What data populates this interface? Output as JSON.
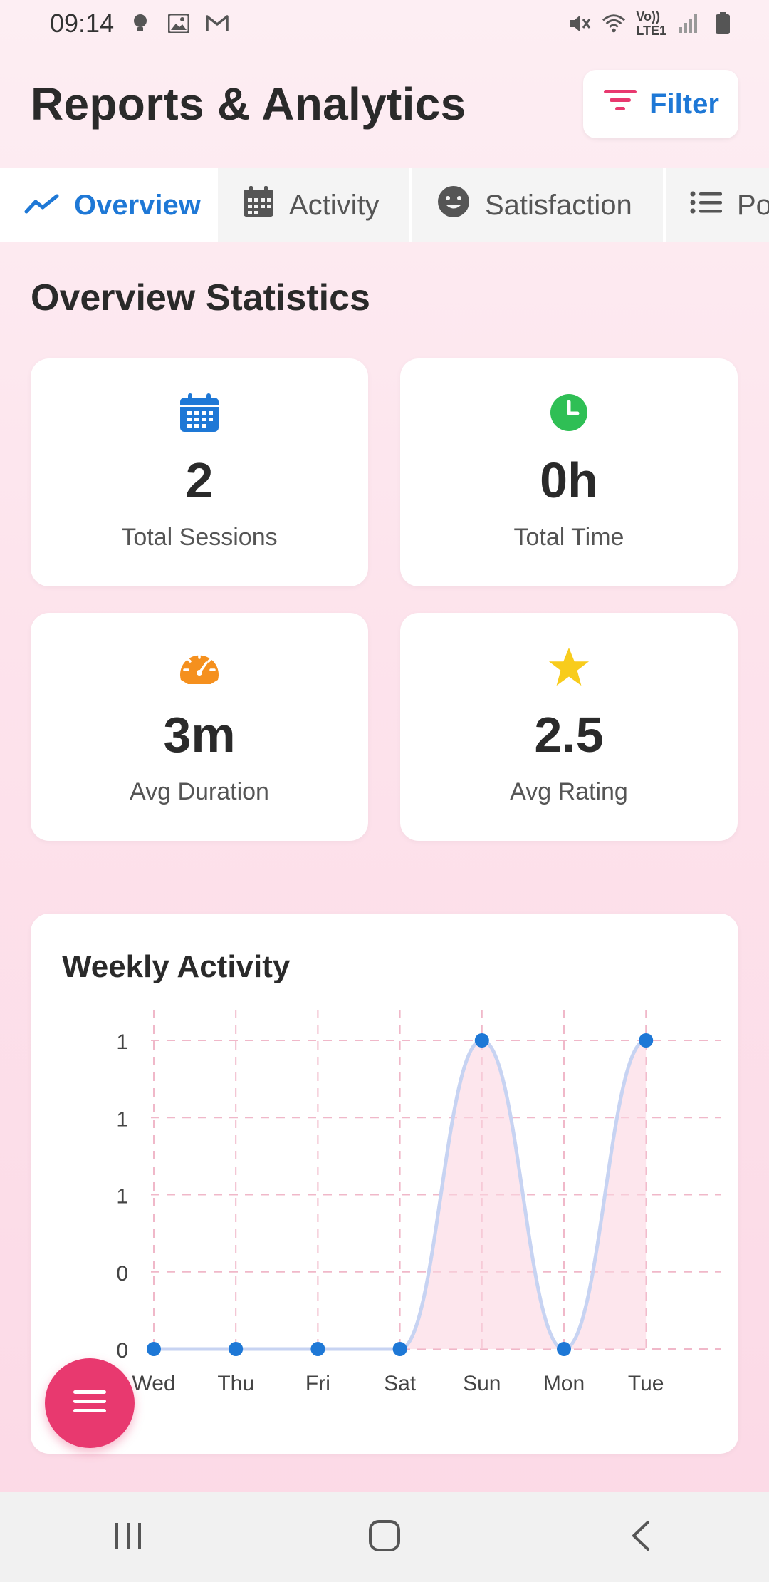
{
  "status_bar": {
    "time": "09:14",
    "left_icons": [
      "bulb-icon",
      "image-icon",
      "gmail-icon"
    ],
    "network_label_top": "Vo))",
    "network_label_bottom": "LTE1",
    "right_icons": [
      "mute-icon",
      "wifi-icon",
      "signal-icon",
      "battery-icon"
    ]
  },
  "header": {
    "title": "Reports & Analytics",
    "filter_label": "Filter",
    "accent": "#1e78d6",
    "filter_icon_color": "#e8396f"
  },
  "tabs": [
    {
      "label": "Overview",
      "icon": "trend-icon",
      "active": true
    },
    {
      "label": "Activity",
      "icon": "calendar-icon",
      "active": false
    },
    {
      "label": "Satisfaction",
      "icon": "smile-icon",
      "active": false
    },
    {
      "label": "Po",
      "icon": "list-icon",
      "active": false
    }
  ],
  "overview": {
    "title": "Overview Statistics",
    "stats": [
      {
        "value": "2",
        "label": "Total Sessions",
        "icon": "calendar-icon",
        "color": "#1e78d6"
      },
      {
        "value": "0h",
        "label": "Total Time",
        "icon": "clock-icon",
        "color": "#2fbf55"
      },
      {
        "value": "3m",
        "label": "Avg Duration",
        "icon": "speedometer-icon",
        "color": "#f5901e"
      },
      {
        "value": "2.5",
        "label": "Avg Rating",
        "icon": "star-icon",
        "color": "#f8cc1c"
      }
    ]
  },
  "weekly_chart": {
    "title": "Weekly Activity"
  },
  "chart_data": {
    "type": "line",
    "title": "Weekly Activity",
    "categories": [
      "Wed",
      "Thu",
      "Fri",
      "Sat",
      "Sun",
      "Mon",
      "Tue"
    ],
    "values": [
      0,
      0,
      0,
      0,
      1,
      0,
      1
    ],
    "ylim": [
      0,
      1
    ],
    "y_tick_labels": [
      "0",
      "0",
      "1",
      "1",
      "1"
    ],
    "grid": true,
    "line_color": "#1e78d6",
    "fill_color": "#fbd5e1"
  },
  "fab": {
    "icon": "menu-icon"
  },
  "nav_bar": {
    "icons": [
      "recents-icon",
      "home-icon",
      "back-icon"
    ]
  }
}
